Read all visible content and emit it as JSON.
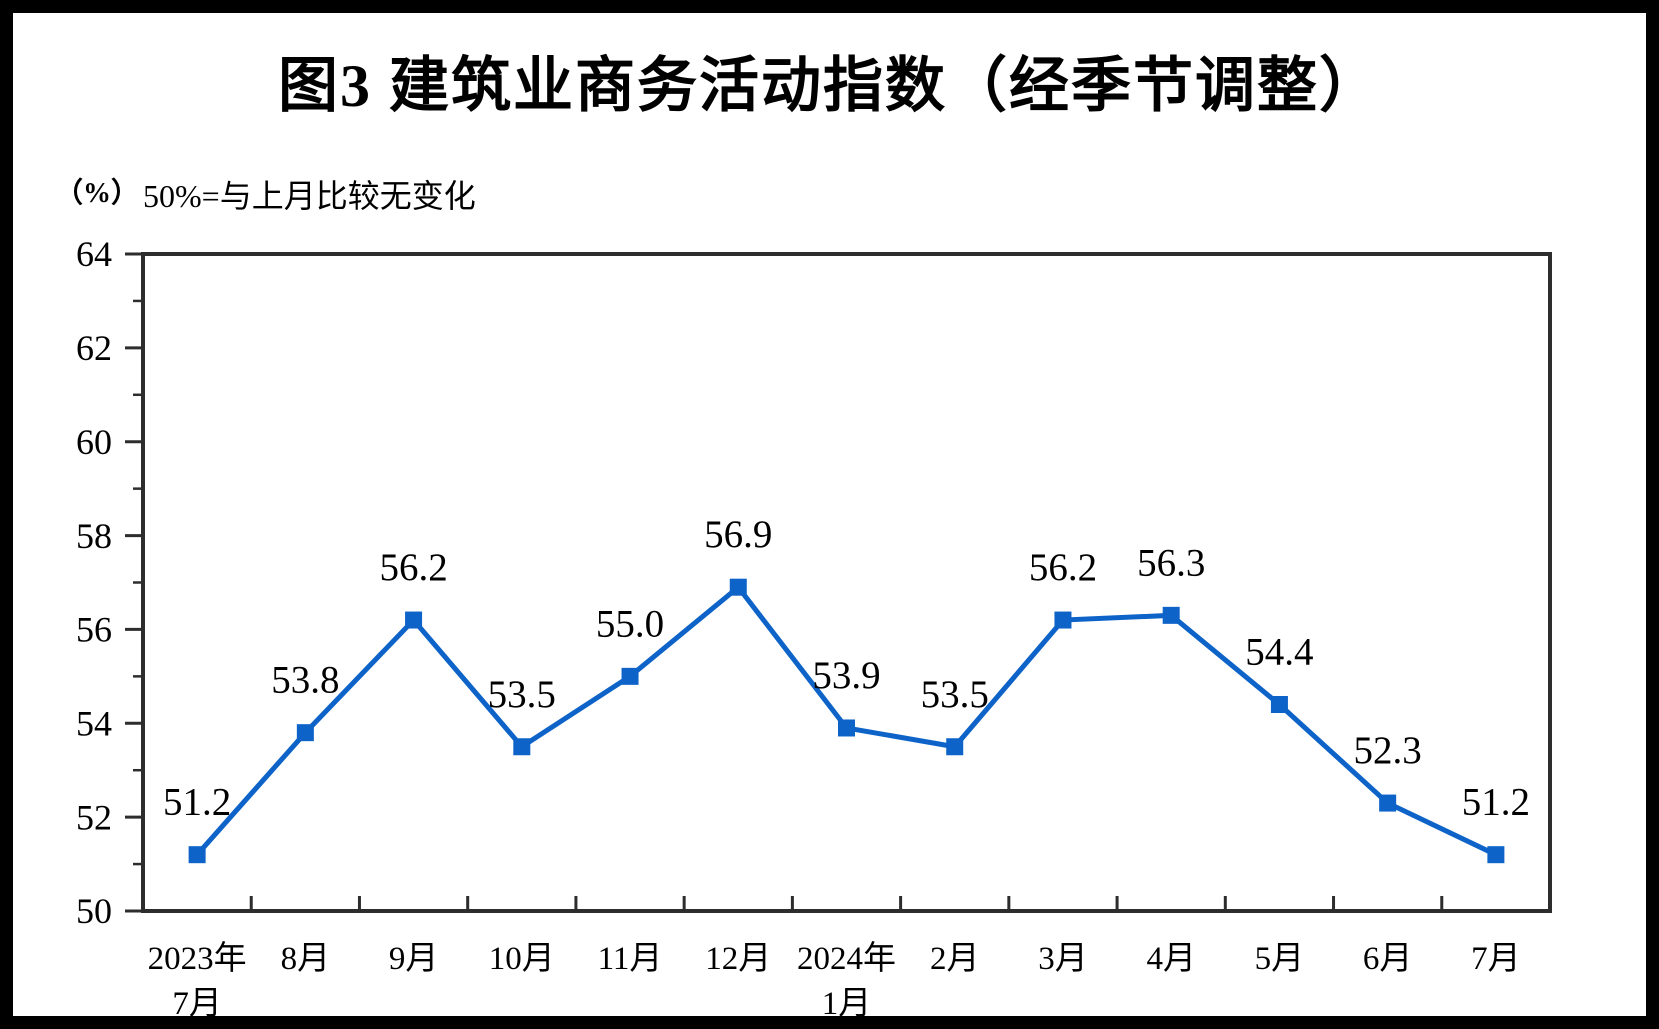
{
  "title": "图3 建筑业商务活动指数（经季节调整）",
  "y_axis_unit": "（%）",
  "note": "50%=与上月比较无变化",
  "chart_data": {
    "type": "line",
    "series_name": "建筑业商务活动指数（经季节调整）",
    "categories": [
      [
        "2023年",
        "7月"
      ],
      [
        "8月"
      ],
      [
        "9月"
      ],
      [
        "10月"
      ],
      [
        "11月"
      ],
      [
        "12月"
      ],
      [
        "2024年",
        "1月"
      ],
      [
        "2月"
      ],
      [
        "3月"
      ],
      [
        "4月"
      ],
      [
        "5月"
      ],
      [
        "6月"
      ],
      [
        "7月"
      ]
    ],
    "values": [
      51.2,
      53.8,
      56.2,
      53.5,
      55.0,
      56.9,
      53.9,
      53.5,
      56.2,
      56.3,
      54.4,
      52.3,
      51.2
    ],
    "point_labels": [
      "51.2",
      "53.8",
      "56.2",
      "53.5",
      "55.0",
      "56.9",
      "53.9",
      "53.5",
      "56.2",
      "56.3",
      "54.4",
      "52.3",
      "51.2"
    ],
    "ylim": [
      50,
      64
    ],
    "y_major_ticks": [
      50,
      52,
      54,
      56,
      58,
      60,
      62,
      64
    ],
    "y_minor_ticks": [
      51,
      53,
      55,
      57,
      59,
      61,
      63
    ],
    "grid": false,
    "legend": null,
    "line_color": "#0D63C8",
    "marker": "square",
    "axis_color": "#2d2d2d",
    "text_color": "#000000"
  }
}
